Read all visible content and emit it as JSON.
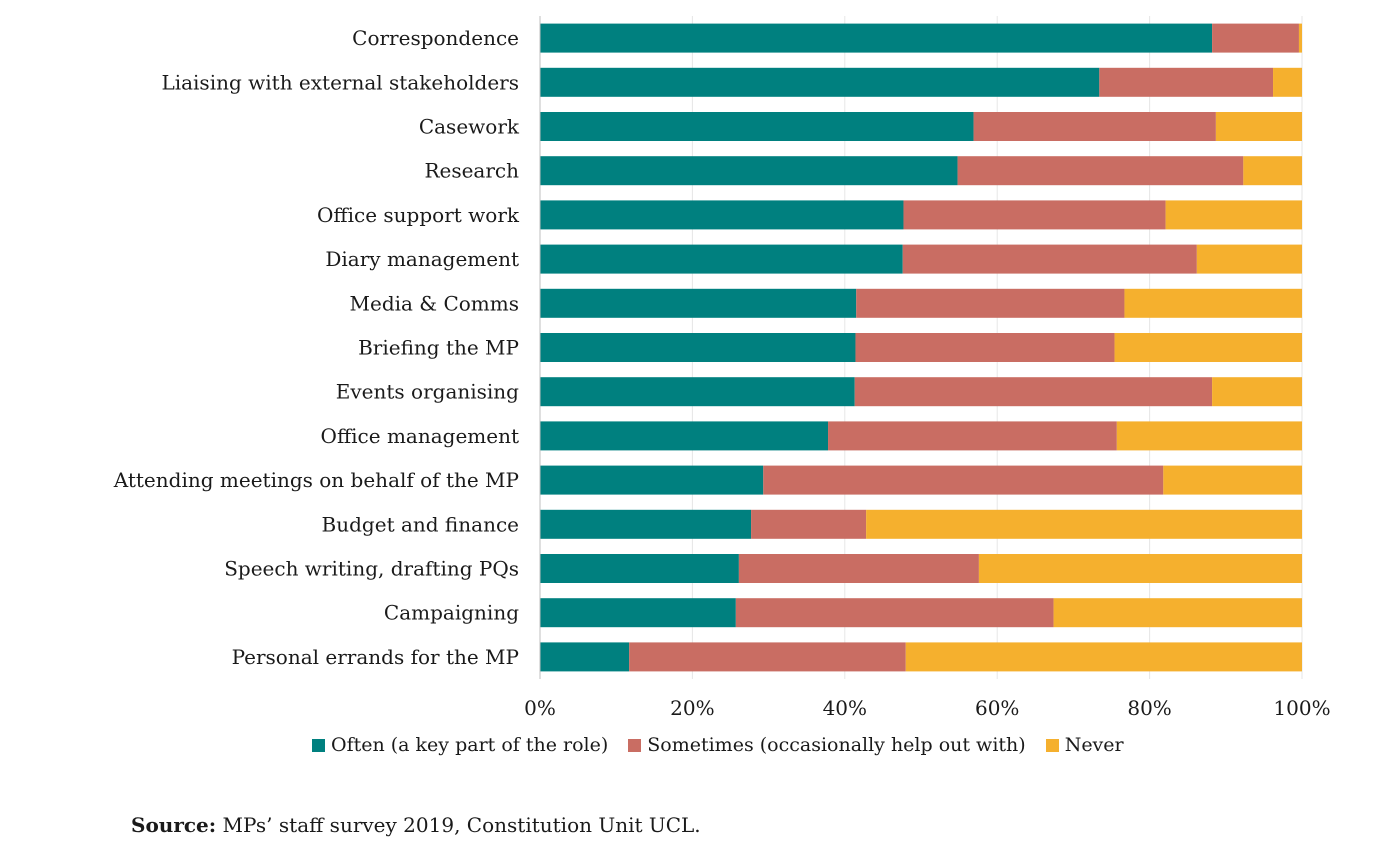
{
  "chart_data": {
    "type": "bar",
    "orientation": "horizontal",
    "stacked": true,
    "percent": true,
    "categories": [
      "Correspondence",
      "Liaising with external stakeholders",
      "Casework",
      "Research",
      "Office support work",
      "Diary management",
      "Media & Comms",
      "Briefing the MP",
      "Events organising",
      "Office management",
      "Attending meetings on behalf of the MP",
      "Budget and finance",
      "Speech writing, drafting PQs",
      "Campaigning",
      "Personal  errands for the MP"
    ],
    "series": [
      {
        "name": "Often (a key part of the role)",
        "color": "#00807f",
        "values": [
          88.2,
          73.4,
          56.9,
          54.8,
          47.7,
          47.6,
          41.5,
          41.4,
          41.3,
          37.8,
          29.3,
          27.7,
          26.1,
          25.7,
          11.7
        ]
      },
      {
        "name": "Sometimes (occasionally help out with)",
        "color": "#c96d63",
        "values": [
          11.4,
          22.8,
          31.8,
          37.5,
          34.4,
          38.6,
          35.2,
          34.0,
          46.9,
          37.9,
          52.5,
          15.1,
          31.5,
          41.7,
          36.3
        ]
      },
      {
        "name": "Never",
        "color": "#f5b02e",
        "values": [
          0.4,
          3.8,
          11.3,
          7.7,
          17.9,
          13.8,
          23.3,
          24.6,
          11.8,
          24.3,
          18.2,
          57.2,
          42.4,
          32.6,
          52.0
        ]
      }
    ],
    "xaxis": {
      "ticks": [
        "0%",
        "20%",
        "40%",
        "60%",
        "80%",
        "100%"
      ],
      "range": [
        0,
        100
      ]
    },
    "gridlines": true,
    "legend_position": "bottom",
    "title": "",
    "xlabel": "",
    "ylabel": ""
  },
  "source": {
    "label": "Source:",
    "text": " MPs’ staff survey 2019, Constitution Unit UCL."
  }
}
